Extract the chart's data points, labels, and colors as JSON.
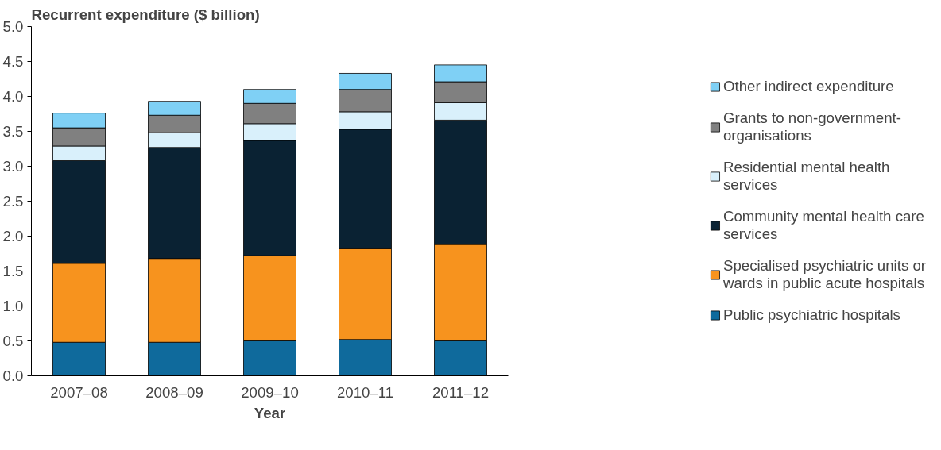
{
  "chart_data": {
    "type": "bar",
    "stacked": true,
    "ylabel": "Recurrent expenditure ($ billion)",
    "xlabel": "Year",
    "categories": [
      "2007–08",
      "2008–09",
      "2009–10",
      "2010–11",
      "2011–12"
    ],
    "series": [
      {
        "name": "Public psychiatric hospitals",
        "color": "#0f6a9c",
        "values": [
          0.48,
          0.48,
          0.5,
          0.52,
          0.5
        ]
      },
      {
        "name": "Specialised psychiatric units or wards in public acute hospitals",
        "color": "#f7931e",
        "values": [
          1.13,
          1.2,
          1.22,
          1.3,
          1.38
        ]
      },
      {
        "name": "Community mental health care services",
        "color": "#0a2233",
        "values": [
          1.47,
          1.59,
          1.65,
          1.71,
          1.78
        ]
      },
      {
        "name": "Residential mental health services",
        "color": "#d9f0fb",
        "values": [
          0.21,
          0.21,
          0.24,
          0.25,
          0.25
        ]
      },
      {
        "name": "Grants to non-government-organisations",
        "color": "#808080",
        "values": [
          0.26,
          0.25,
          0.29,
          0.32,
          0.3
        ]
      },
      {
        "name": "Other indirect expenditure",
        "color": "#7fd0f5",
        "values": [
          0.21,
          0.2,
          0.2,
          0.23,
          0.24
        ]
      }
    ],
    "ylim": [
      0,
      5
    ],
    "yticks": [
      {
        "value": 0,
        "label": "0.0"
      },
      {
        "value": 0.5,
        "label": "0.5"
      },
      {
        "value": 1,
        "label": "1.0"
      },
      {
        "value": 1.5,
        "label": "1.5"
      },
      {
        "value": 2,
        "label": "2.0"
      },
      {
        "value": 2.5,
        "label": "2.5"
      },
      {
        "value": 3,
        "label": "3.0"
      },
      {
        "value": 3.5,
        "label": "3.5"
      },
      {
        "value": 4,
        "label": "4.0"
      },
      {
        "value": 4.5,
        "label": "4.5"
      },
      {
        "value": 5,
        "label": "5.0"
      }
    ],
    "grid": false,
    "legend": "right"
  }
}
